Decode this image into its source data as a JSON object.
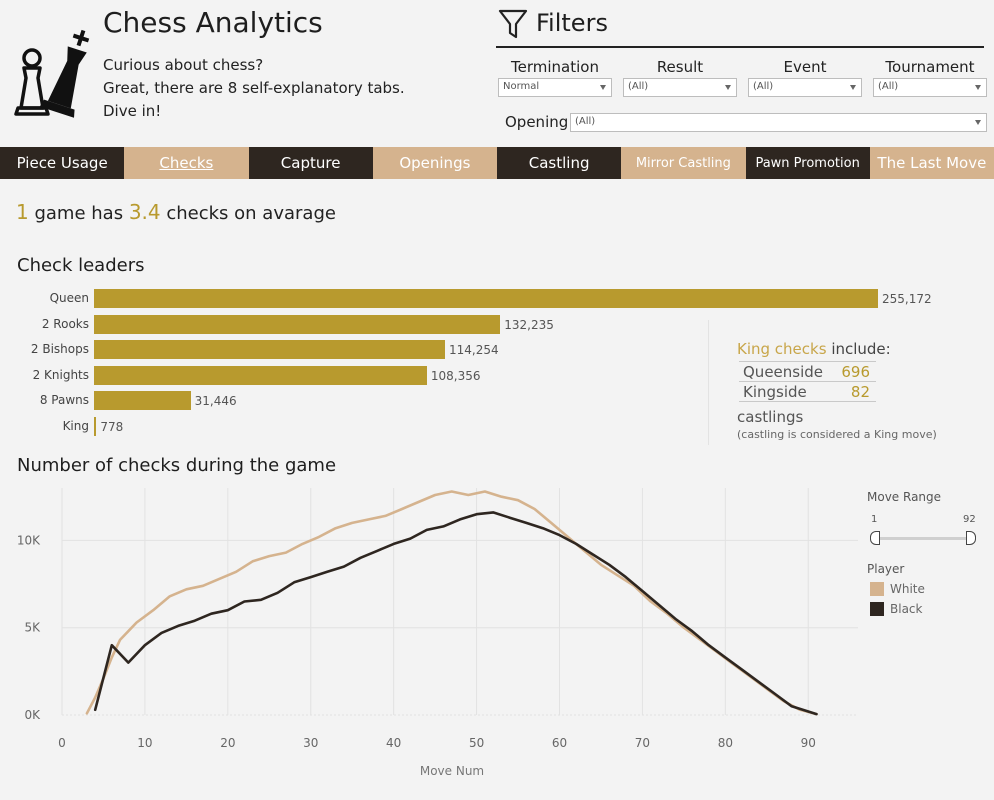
{
  "app": {
    "title": "Chess Analytics",
    "intro_lines": [
      "Curious about chess?",
      "Great, there are 8 self-explanatory tabs.",
      "Dive in!"
    ]
  },
  "filters": {
    "title": "Filters",
    "termination": {
      "label": "Termination",
      "value": "Normal"
    },
    "result": {
      "label": "Result",
      "value": "(All)"
    },
    "event": {
      "label": "Event",
      "value": "(All)"
    },
    "tournament": {
      "label": "Tournament",
      "value": "(All)"
    },
    "opening": {
      "label": "Opening",
      "value": "(All)"
    }
  },
  "tabs": [
    {
      "label": "Piece Usage",
      "style": "dark"
    },
    {
      "label": "Checks",
      "style": "light",
      "active": true
    },
    {
      "label": "Capture",
      "style": "dark"
    },
    {
      "label": "Openings",
      "style": "light"
    },
    {
      "label": "Castling",
      "style": "dark"
    },
    {
      "label": "Mirror Castling",
      "style": "light"
    },
    {
      "label": "Pawn Promotion",
      "style": "dark"
    },
    {
      "label": "The Last Move",
      "style": "light"
    }
  ],
  "headline": {
    "count": "1",
    "mid": "game has",
    "value": "3.4",
    "tail": "checks on avarage"
  },
  "check_leaders": {
    "title": "Check leaders"
  },
  "king_panel": {
    "title_accent": "King checks",
    "title_rest": "include:",
    "rows": [
      {
        "label": "Queenside",
        "value": "696"
      },
      {
        "label": "Kingside",
        "value": "82"
      }
    ],
    "castlings": "castlings",
    "note": "(castling is considered a King move)"
  },
  "line_section": {
    "title": "Number of checks during the game"
  },
  "side": {
    "move_range_title": "Move Range",
    "range_min": "1",
    "range_max": "92",
    "player_title": "Player",
    "legend": [
      {
        "name": "White",
        "color": "#d5b38e"
      },
      {
        "name": "Black",
        "color": "#2e2620"
      }
    ]
  },
  "colors": {
    "accent": "#b89a2e",
    "dark": "#2e2620",
    "light": "#d5b38e"
  },
  "chart_data": [
    {
      "type": "bar",
      "title": "Check leaders",
      "categories": [
        "Queen",
        "2 Rooks",
        "2 Bishops",
        "2 Knights",
        "8 Pawns",
        "King"
      ],
      "values": [
        255172,
        132235,
        114254,
        108356,
        31446,
        778
      ],
      "value_labels": [
        "255,172",
        "132,235",
        "114,254",
        "108,356",
        "31,446",
        "778"
      ],
      "color": "#b89a2e"
    },
    {
      "type": "line",
      "title": "Number of checks during the game",
      "xlabel": "Move Num",
      "ylabel": "",
      "xlim": [
        0,
        96
      ],
      "ylim": [
        0,
        13000
      ],
      "xticks": [
        "0",
        "10",
        "20",
        "30",
        "40",
        "50",
        "60",
        "70",
        "80",
        "90"
      ],
      "yticks": [
        "0K",
        "5K",
        "10K"
      ],
      "grid": true,
      "series": [
        {
          "name": "White",
          "color": "#d5b38e",
          "points": [
            [
              3,
              100
            ],
            [
              4,
              1000
            ],
            [
              5,
              2100
            ],
            [
              6,
              3300
            ],
            [
              7,
              4300
            ],
            [
              9,
              5300
            ],
            [
              11,
              6000
            ],
            [
              13,
              6800
            ],
            [
              15,
              7200
            ],
            [
              17,
              7400
            ],
            [
              19,
              7800
            ],
            [
              21,
              8200
            ],
            [
              23,
              8800
            ],
            [
              25,
              9100
            ],
            [
              27,
              9300
            ],
            [
              29,
              9800
            ],
            [
              31,
              10200
            ],
            [
              33,
              10700
            ],
            [
              35,
              11000
            ],
            [
              37,
              11200
            ],
            [
              39,
              11400
            ],
            [
              41,
              11800
            ],
            [
              43,
              12200
            ],
            [
              45,
              12600
            ],
            [
              47,
              12800
            ],
            [
              49,
              12600
            ],
            [
              51,
              12800
            ],
            [
              53,
              12500
            ],
            [
              55,
              12300
            ],
            [
              57,
              11800
            ],
            [
              59,
              11000
            ],
            [
              61,
              10200
            ],
            [
              63,
              9400
            ],
            [
              65,
              8600
            ],
            [
              67,
              8000
            ],
            [
              69,
              7400
            ],
            [
              71,
              6500
            ],
            [
              73,
              5800
            ],
            [
              75,
              5000
            ],
            [
              77,
              4300
            ],
            [
              79,
              3600
            ],
            [
              81,
              2900
            ],
            [
              83,
              2200
            ],
            [
              85,
              1500
            ],
            [
              87,
              800
            ],
            [
              89,
              300
            ],
            [
              91,
              50
            ]
          ]
        },
        {
          "name": "Black",
          "color": "#2e2620",
          "points": [
            [
              4,
              300
            ],
            [
              6,
              4000
            ],
            [
              8,
              3000
            ],
            [
              10,
              4000
            ],
            [
              12,
              4700
            ],
            [
              14,
              5100
            ],
            [
              16,
              5400
            ],
            [
              18,
              5800
            ],
            [
              20,
              6000
            ],
            [
              22,
              6500
            ],
            [
              24,
              6600
            ],
            [
              26,
              7000
            ],
            [
              28,
              7600
            ],
            [
              30,
              7900
            ],
            [
              32,
              8200
            ],
            [
              34,
              8500
            ],
            [
              36,
              9000
            ],
            [
              38,
              9400
            ],
            [
              40,
              9800
            ],
            [
              42,
              10100
            ],
            [
              44,
              10600
            ],
            [
              46,
              10800
            ],
            [
              48,
              11200
            ],
            [
              50,
              11500
            ],
            [
              52,
              11600
            ],
            [
              54,
              11300
            ],
            [
              56,
              11000
            ],
            [
              58,
              10700
            ],
            [
              60,
              10300
            ],
            [
              62,
              9800
            ],
            [
              64,
              9200
            ],
            [
              66,
              8600
            ],
            [
              68,
              7900
            ],
            [
              70,
              7100
            ],
            [
              72,
              6300
            ],
            [
              74,
              5500
            ],
            [
              76,
              4800
            ],
            [
              78,
              4000
            ],
            [
              80,
              3300
            ],
            [
              82,
              2600
            ],
            [
              84,
              1900
            ],
            [
              86,
              1200
            ],
            [
              88,
              500
            ],
            [
              90,
              200
            ],
            [
              91,
              50
            ]
          ]
        }
      ]
    }
  ]
}
